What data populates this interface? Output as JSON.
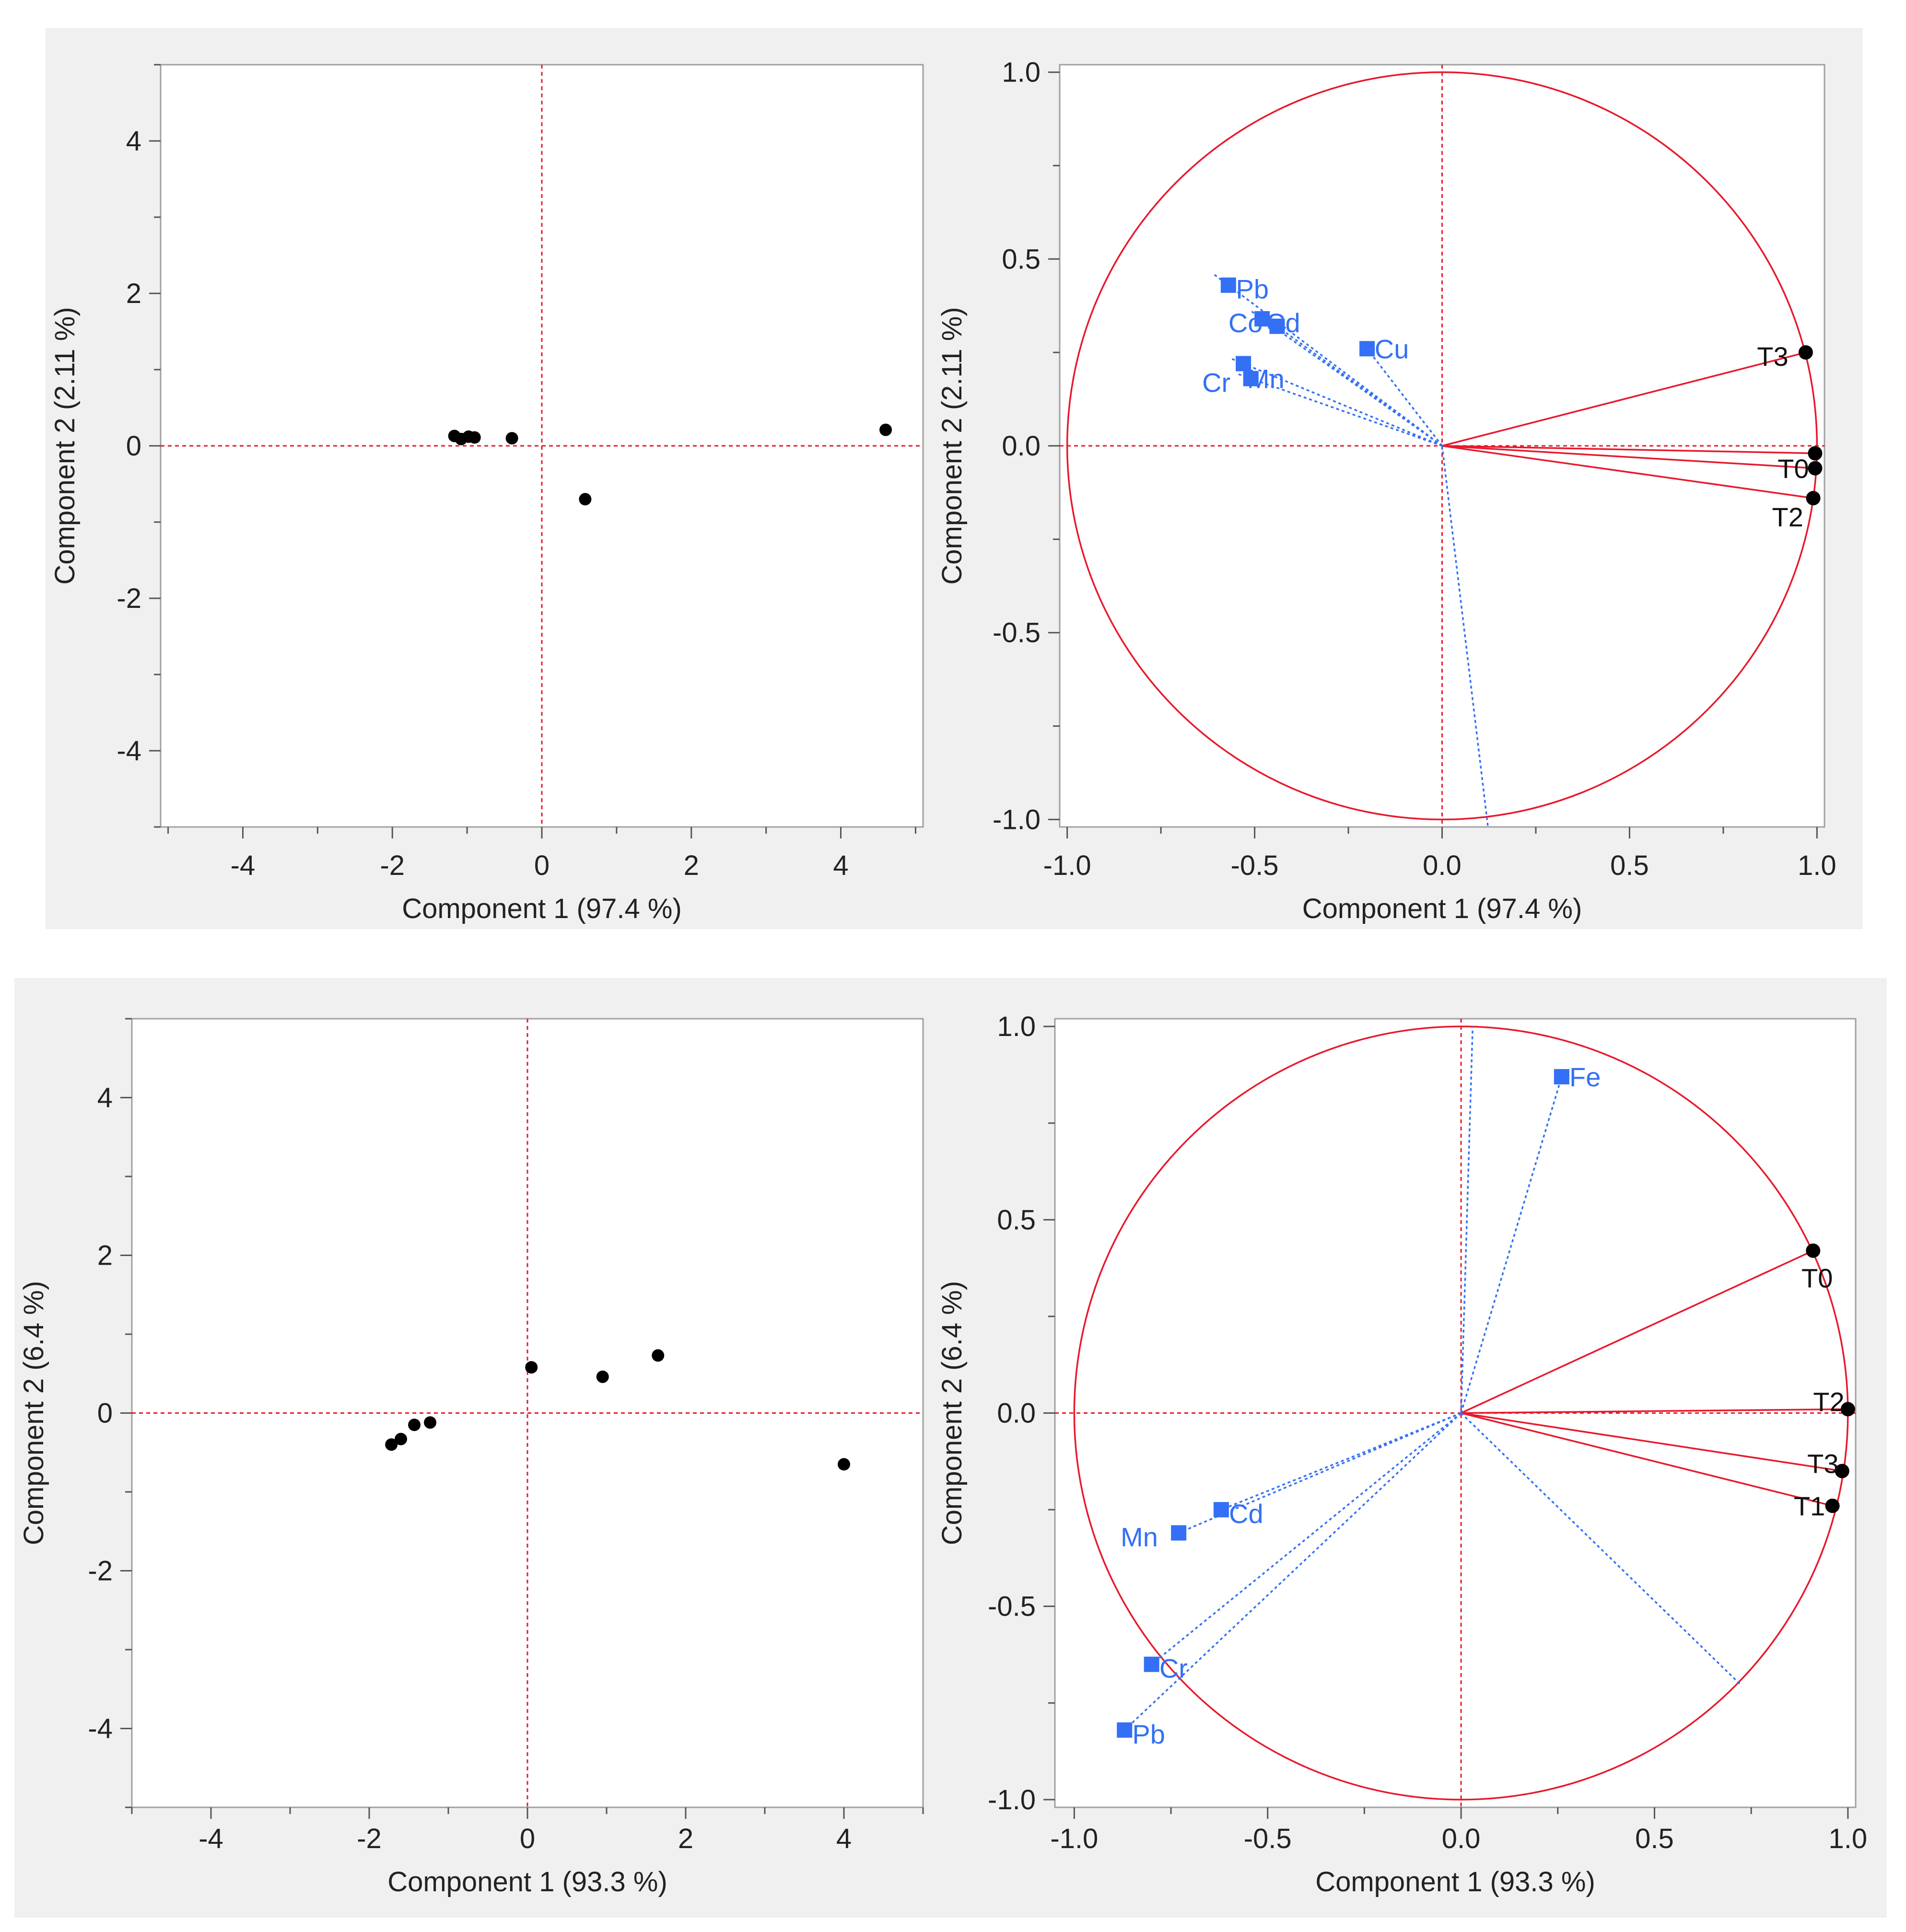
{
  "colors": {
    "red": "#e8192c",
    "blue": "#3370f5",
    "black": "#000000",
    "frame": "#a0a0a0",
    "panel": "#f0f0f0"
  },
  "chart_data": [
    {
      "type": "scatter",
      "name": "score-plot-top",
      "xlabel": "Component 1  (97.4 %)",
      "ylabel": "Component 2  (2.11 %)",
      "xlim": [
        -5.1,
        5.1
      ],
      "ylim": [
        -5.0,
        5.0
      ],
      "xticks": [
        -4,
        -2,
        0,
        2,
        4
      ],
      "xtick_labels": [
        "-4",
        "-2",
        "0",
        "2",
        "4"
      ],
      "yticks": [
        -4,
        -2,
        0,
        2,
        4
      ],
      "ytick_labels": [
        "-4",
        "-2",
        "0",
        "2",
        "4"
      ],
      "points": [
        {
          "x": -1.17,
          "y": 0.13
        },
        {
          "x": -1.08,
          "y": 0.09
        },
        {
          "x": -0.98,
          "y": 0.12
        },
        {
          "x": -0.9,
          "y": 0.11
        },
        {
          "x": -0.4,
          "y": 0.1
        },
        {
          "x": 0.58,
          "y": -0.7
        },
        {
          "x": 4.6,
          "y": 0.21
        }
      ]
    },
    {
      "type": "scatter",
      "name": "loading-plot-top",
      "xlabel": "Component 1  (97.4 %)",
      "ylabel": "Component 2  (2.11 %)",
      "xlim": [
        -1.02,
        1.02
      ],
      "ylim": [
        -1.02,
        1.02
      ],
      "xticks": [
        -1.0,
        -0.5,
        0.0,
        0.5,
        1.0
      ],
      "xtick_labels": [
        "-1.0",
        "-0.5",
        "0.0",
        "0.5",
        "1.0"
      ],
      "yticks": [
        -1.0,
        -0.5,
        0.0,
        0.5,
        1.0
      ],
      "ytick_labels": [
        "-1.0",
        "-0.5",
        "0.0",
        "0.5",
        "1.0"
      ],
      "variables": [
        {
          "label": "Pb",
          "x": -0.57,
          "y": 0.43,
          "label_dx": 0.02,
          "label_dy": -0.01
        },
        {
          "label": "Cd",
          "x": -0.44,
          "y": 0.32,
          "label_dx": -0.03,
          "label_dy": 0.01
        },
        {
          "label": "Co",
          "x": -0.48,
          "y": 0.34,
          "label_dx": -0.09,
          "label_dy": -0.01
        },
        {
          "label": "Cu",
          "x": -0.2,
          "y": 0.26,
          "label_dx": 0.02,
          "label_dy": 0.0
        },
        {
          "label": "Cr",
          "x": -0.53,
          "y": 0.22,
          "label_dx": -0.11,
          "label_dy": -0.05
        },
        {
          "label": "Mn",
          "x": -0.51,
          "y": 0.18,
          "label_dx": -0.01,
          "label_dy": 0.0
        },
        {
          "label": "",
          "x": 0.12,
          "y": -1.0,
          "label_dx": 0.0,
          "label_dy": 0.0
        }
      ],
      "samples": [
        {
          "label": "T3",
          "x": 0.97,
          "y": 0.25,
          "label_dx": -0.13,
          "label_dy": -0.01,
          "label_side": "left"
        },
        {
          "label": "",
          "x": 0.995,
          "y": -0.02,
          "label_dx": 0.0,
          "label_dy": 0.0,
          "label_side": "left"
        },
        {
          "label": "T0",
          "x": 0.995,
          "y": -0.06,
          "label_dx": -0.1,
          "label_dy": 0.0,
          "label_side": "left"
        },
        {
          "label": "T2",
          "x": 0.99,
          "y": -0.14,
          "label_dx": -0.11,
          "label_dy": -0.05,
          "label_side": "left"
        }
      ],
      "variable_extension": 1.07
    },
    {
      "type": "scatter",
      "name": "score-plot-bottom",
      "xlabel": "Component 1  (93.3 %)",
      "ylabel": "Component 2  (6.4 %)",
      "xlim": [
        -5.0,
        5.0
      ],
      "ylim": [
        -5.0,
        5.0
      ],
      "xticks": [
        -4,
        -2,
        0,
        2,
        4
      ],
      "xtick_labels": [
        "-4",
        "-2",
        "0",
        "2",
        "4"
      ],
      "yticks": [
        -4,
        -2,
        0,
        2,
        4
      ],
      "ytick_labels": [
        "-4",
        "-2",
        "0",
        "2",
        "4"
      ],
      "points": [
        {
          "x": -1.72,
          "y": -0.4
        },
        {
          "x": -1.6,
          "y": -0.33
        },
        {
          "x": -1.43,
          "y": -0.15
        },
        {
          "x": -1.23,
          "y": -0.12
        },
        {
          "x": 0.05,
          "y": 0.58
        },
        {
          "x": 0.95,
          "y": 0.46
        },
        {
          "x": 1.65,
          "y": 0.73
        },
        {
          "x": 4.0,
          "y": -0.65
        }
      ]
    },
    {
      "type": "scatter",
      "name": "loading-plot-bottom",
      "xlabel": "Component 1  (93.3 %)",
      "ylabel": "Component 2  (6.4 %)",
      "xlim": [
        -1.05,
        1.02
      ],
      "ylim": [
        -1.02,
        1.02
      ],
      "xticks": [
        -1.0,
        -0.5,
        0.0,
        0.5,
        1.0
      ],
      "xtick_labels": [
        "-1.0",
        "-0.5",
        "0.0",
        "0.5",
        "1.0"
      ],
      "yticks": [
        -1.0,
        -0.5,
        0.0,
        0.5,
        1.0
      ],
      "ytick_labels": [
        "-1.0",
        "-0.5",
        "0.0",
        "0.5",
        "1.0"
      ],
      "variables": [
        {
          "label": "Fe",
          "x": 0.26,
          "y": 0.87,
          "label_dx": 0.02,
          "label_dy": 0.0
        },
        {
          "label": "Cd",
          "x": -0.62,
          "y": -0.25,
          "label_dx": 0.02,
          "label_dy": -0.01
        },
        {
          "label": "Mn",
          "x": -0.73,
          "y": -0.31,
          "label_dx": -0.15,
          "label_dy": -0.01
        },
        {
          "label": "Cr",
          "x": -0.8,
          "y": -0.65,
          "label_dx": 0.02,
          "label_dy": -0.01
        },
        {
          "label": "Pb",
          "x": -0.87,
          "y": -0.82,
          "label_dx": 0.02,
          "label_dy": -0.01
        },
        {
          "label": "",
          "x": 0.03,
          "y": 1.0,
          "label_dx": 0.0,
          "label_dy": 0.0
        },
        {
          "label": "",
          "x": 0.72,
          "y": -0.7,
          "label_dx": 0.0,
          "label_dy": 0.0
        }
      ],
      "samples": [
        {
          "label": "T0",
          "x": 0.91,
          "y": 0.42,
          "label_dx": -0.03,
          "label_dy": -0.07,
          "label_side": "left"
        },
        {
          "label": "T2",
          "x": 1.0,
          "y": 0.01,
          "label_dx": -0.09,
          "label_dy": 0.02,
          "label_side": "left"
        },
        {
          "label": "T3",
          "x": 0.985,
          "y": -0.15,
          "label_dx": -0.09,
          "label_dy": 0.02,
          "label_side": "left"
        },
        {
          "label": "T1",
          "x": 0.96,
          "y": -0.24,
          "label_dx": -0.1,
          "label_dy": 0.0,
          "label_side": "left"
        }
      ],
      "variable_extension": 1.0
    }
  ]
}
